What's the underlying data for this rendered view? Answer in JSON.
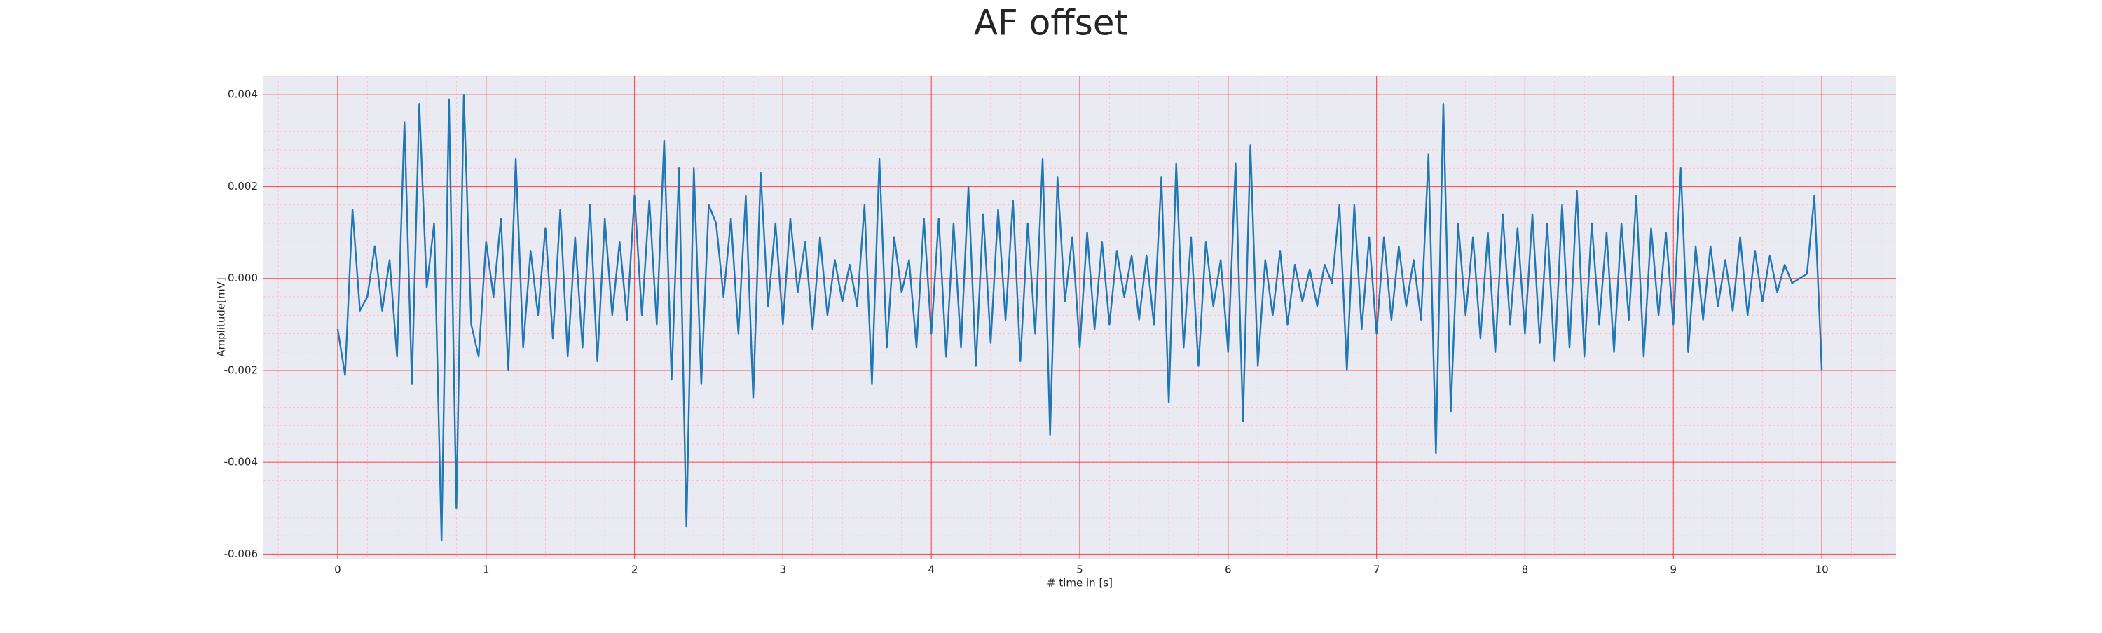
{
  "chart_data": {
    "type": "line",
    "title": "AF offset",
    "xlabel": "# time in [s]",
    "ylabel": "Amplitude[mV]",
    "color": "#1f77b4",
    "grid": true,
    "minor_grid": true,
    "xlim": [
      -0.5,
      10.5
    ],
    "xticks": [
      0,
      1,
      2,
      3,
      4,
      5,
      6,
      7,
      8,
      9,
      10
    ],
    "ylim": [
      -0.0061,
      0.0044
    ],
    "yticks": [
      -0.006,
      -0.004,
      -0.002,
      {
        "value": 0,
        "label": "0.000"
      },
      0.002,
      0.004
    ],
    "x": [
      0,
      0.05,
      0.1,
      0.15,
      0.2,
      0.25,
      0.3,
      0.35,
      0.4,
      0.45,
      0.5,
      0.55,
      0.6,
      0.65,
      0.7,
      0.75,
      0.8,
      0.85,
      0.9,
      0.95,
      1,
      1.05,
      1.1,
      1.15,
      1.2,
      1.25,
      1.3,
      1.35,
      1.4,
      1.45,
      1.5,
      1.55,
      1.6,
      1.65,
      1.7,
      1.75,
      1.8,
      1.85,
      1.9,
      1.95,
      2,
      2.05,
      2.1,
      2.15,
      2.2,
      2.25,
      2.3,
      2.35,
      2.4,
      2.45,
      2.5,
      2.55,
      2.6,
      2.65,
      2.7,
      2.75,
      2.8,
      2.85,
      2.9,
      2.95,
      3,
      3.05,
      3.1,
      3.15,
      3.2,
      3.25,
      3.3,
      3.35,
      3.4,
      3.45,
      3.5,
      3.55,
      3.6,
      3.65,
      3.7,
      3.75,
      3.8,
      3.85,
      3.9,
      3.95,
      4,
      4.05,
      4.1,
      4.15,
      4.2,
      4.25,
      4.3,
      4.35,
      4.4,
      4.45,
      4.5,
      4.55,
      4.6,
      4.65,
      4.7,
      4.75,
      4.8,
      4.85,
      4.9,
      4.95,
      5,
      5.05,
      5.1,
      5.15,
      5.2,
      5.25,
      5.3,
      5.35,
      5.4,
      5.45,
      5.5,
      5.55,
      5.6,
      5.65,
      5.7,
      5.75,
      5.8,
      5.85,
      5.9,
      5.95,
      6,
      6.05,
      6.1,
      6.15,
      6.2,
      6.25,
      6.3,
      6.35,
      6.4,
      6.45,
      6.5,
      6.55,
      6.6,
      6.65,
      6.7,
      6.75,
      6.8,
      6.85,
      6.9,
      6.95,
      7,
      7.05,
      7.1,
      7.15,
      7.2,
      7.25,
      7.3,
      7.35,
      7.4,
      7.45,
      7.5,
      7.55,
      7.6,
      7.65,
      7.7,
      7.75,
      7.8,
      7.85,
      7.9,
      7.95,
      8,
      8.05,
      8.1,
      8.15,
      8.2,
      8.25,
      8.3,
      8.35,
      8.4,
      8.45,
      8.5,
      8.55,
      8.6,
      8.65,
      8.7,
      8.75,
      8.8,
      8.85,
      8.9,
      8.95,
      9,
      9.05,
      9.1,
      9.15,
      9.2,
      9.25,
      9.3,
      9.35,
      9.4,
      9.45,
      9.5,
      9.55,
      9.6,
      9.65,
      9.7,
      9.75,
      9.8,
      9.85,
      9.9,
      9.95,
      10
    ],
    "values": [
      -0.0011,
      -0.0021,
      0.0015,
      -0.0007,
      -0.0004,
      0.0007,
      -0.0007,
      0.0004,
      -0.0017,
      0.0034,
      -0.0023,
      0.0038,
      -0.0002,
      0.0012,
      -0.0057,
      0.0039,
      -0.005,
      0.004,
      -0.001,
      -0.0017,
      0.0008,
      -0.0004,
      0.0013,
      -0.002,
      0.0026,
      -0.0015,
      0.0006,
      -0.0008,
      0.0011,
      -0.0013,
      0.0015,
      -0.0017,
      0.0009,
      -0.0015,
      0.0016,
      -0.0018,
      0.0013,
      -0.0008,
      0.0008,
      -0.0009,
      0.0018,
      -0.0008,
      0.0017,
      -0.001,
      0.003,
      -0.0022,
      0.0024,
      -0.0054,
      0.0024,
      -0.0023,
      0.0016,
      0.0012,
      -0.0004,
      0.0013,
      -0.0012,
      0.0018,
      -0.0026,
      0.0023,
      -0.0006,
      0.0012,
      -0.001,
      0.0013,
      -0.0003,
      0.0008,
      -0.0011,
      0.0009,
      -0.0008,
      0.0004,
      -0.0005,
      0.0003,
      -0.0006,
      0.0016,
      -0.0023,
      0.0026,
      -0.0015,
      0.0009,
      -0.0003,
      0.0004,
      -0.0015,
      0.0013,
      -0.0012,
      0.0013,
      -0.0017,
      0.0012,
      -0.0015,
      0.002,
      -0.0019,
      0.0014,
      -0.0014,
      0.0015,
      -0.0009,
      0.0017,
      -0.0018,
      0.0012,
      -0.0012,
      0.0026,
      -0.0034,
      0.0022,
      -0.0005,
      0.0009,
      -0.0015,
      0.001,
      -0.0011,
      0.0008,
      -0.001,
      0.0006,
      -0.0004,
      0.0005,
      -0.0009,
      0.0005,
      -0.001,
      0.0022,
      -0.0027,
      0.0025,
      -0.0015,
      0.0009,
      -0.0019,
      0.0008,
      -0.0006,
      0.0004,
      -0.0016,
      0.0025,
      -0.0031,
      0.0029,
      -0.0019,
      0.0004,
      -0.0008,
      0.0006,
      -0.001,
      0.0003,
      -0.0005,
      0.0002,
      -0.0006,
      0.0003,
      -0.0001,
      0.0016,
      -0.002,
      0.0016,
      -0.0011,
      0.0009,
      -0.0012,
      0.0009,
      -0.0009,
      0.0007,
      -0.0006,
      0.0004,
      -0.0009,
      0.0027,
      -0.0038,
      0.0038,
      -0.0029,
      0.0012,
      -0.0008,
      0.0009,
      -0.0013,
      0.001,
      -0.0016,
      0.0014,
      -0.001,
      0.0011,
      -0.0012,
      0.0014,
      -0.0014,
      0.0012,
      -0.0018,
      0.0016,
      -0.0015,
      0.0019,
      -0.0017,
      0.0012,
      -0.001,
      0.001,
      -0.0016,
      0.0012,
      -0.0009,
      0.0018,
      -0.0017,
      0.0011,
      -0.0008,
      0.001,
      -0.001,
      0.0024,
      -0.0016,
      0.0007,
      -0.0009,
      0.0007,
      -0.0006,
      0.0004,
      -0.0007,
      0.0009,
      -0.0008,
      0.0006,
      -0.0005,
      0.0005,
      -0.0003,
      0.0003,
      -0.0001,
      0,
      0.0001,
      0.0018,
      -0.002
    ]
  }
}
